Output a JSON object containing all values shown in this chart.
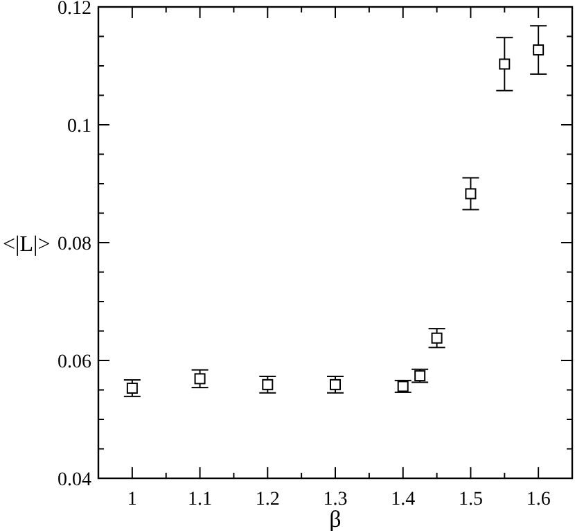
{
  "chart_data": {
    "type": "scatter",
    "xlabel": "β",
    "ylabel": "<|L|>",
    "x": [
      1,
      1.1,
      1.2,
      1.3,
      1.4,
      1.425,
      1.45,
      1.5,
      1.55,
      1.6
    ],
    "values": [
      0.0553,
      0.0569,
      0.0559,
      0.0559,
      0.0556,
      0.0574,
      0.0638,
      0.0883,
      0.1103,
      0.1127
    ],
    "errors": [
      0.0014,
      0.0015,
      0.0014,
      0.0014,
      0.001,
      0.0011,
      0.0016,
      0.0027,
      0.0045,
      0.0041
    ],
    "color": "#000000",
    "marker": "square",
    "grid": false,
    "xlim": [
      0.95,
      1.65
    ],
    "xticks": [
      1,
      {
        "value": 1.05,
        "label": null
      },
      1.1,
      {
        "value": 1.15,
        "label": null
      },
      1.2,
      {
        "value": 1.25,
        "label": null
      },
      1.3,
      {
        "value": 1.35,
        "label": null
      },
      1.4,
      {
        "value": 1.45,
        "label": null
      },
      1.5,
      {
        "value": 1.55,
        "label": null
      },
      1.6
    ],
    "ylim": [
      0.04,
      0.12
    ],
    "yticks": [
      0.04,
      {
        "value": 0.045,
        "label": null
      },
      {
        "value": 0.05,
        "label": null
      },
      {
        "value": 0.055,
        "label": null
      },
      0.06,
      {
        "value": 0.065,
        "label": null
      },
      {
        "value": 0.07,
        "label": null
      },
      {
        "value": 0.075,
        "label": null
      },
      0.08,
      {
        "value": 0.085,
        "label": null
      },
      {
        "value": 0.09,
        "label": null
      },
      {
        "value": 0.095,
        "label": null
      },
      0.1,
      {
        "value": 0.105,
        "label": null
      },
      {
        "value": 0.11,
        "label": null
      },
      {
        "value": 0.115,
        "label": null
      },
      0.12
    ]
  }
}
